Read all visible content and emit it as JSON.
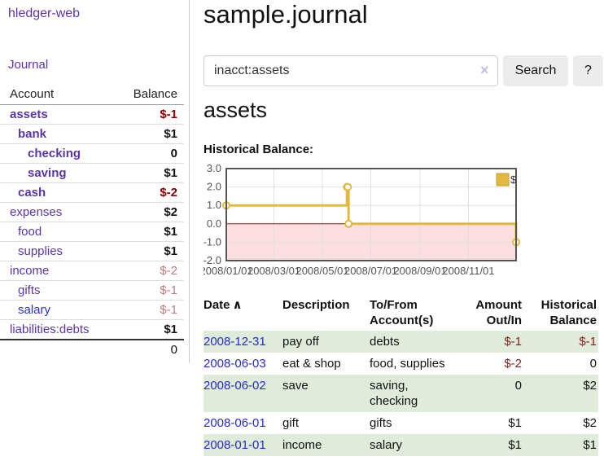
{
  "sidebar": {
    "app_title": "hledger-web",
    "journal_link": "Journal",
    "accounts": {
      "headers": {
        "account": "Account",
        "balance": "Balance"
      },
      "rows": [
        {
          "name": "assets",
          "balance": "$-1"
        },
        {
          "name": "bank",
          "balance": "$1"
        },
        {
          "name": "checking",
          "balance": "0"
        },
        {
          "name": "saving",
          "balance": "$1"
        },
        {
          "name": "cash",
          "balance": "$-2"
        },
        {
          "name": "expenses",
          "balance": "$2"
        },
        {
          "name": "food",
          "balance": "$1"
        },
        {
          "name": "supplies",
          "balance": "$1"
        },
        {
          "name": "income",
          "balance": "$-2"
        },
        {
          "name": "gifts",
          "balance": "$-1"
        },
        {
          "name": "salary",
          "balance": "$-1"
        },
        {
          "name": "liabilities:debts",
          "balance": "$1"
        }
      ],
      "total": "0"
    }
  },
  "main": {
    "title": "sample.journal",
    "search": {
      "value": "inacct:assets",
      "clear_icon": "×",
      "button_label": "Search",
      "help_label": "?"
    },
    "account_heading": "assets",
    "chart_label": "Historical Balance:"
  },
  "chart_data": {
    "type": "line",
    "title": "Historical Balance:",
    "x_range": [
      "2008/01/01",
      "2008/12/31"
    ],
    "x_ticks": [
      "2008/01/01",
      "2008/03/01",
      "2008/05/01",
      "2008/07/01",
      "2008/09/01",
      "2008/11/01"
    ],
    "y_ticks": [
      3.0,
      2.0,
      1.0,
      0.0,
      -1.0,
      -2.0
    ],
    "ylim": [
      -2,
      3
    ],
    "grid": true,
    "legend_position": "top-right",
    "series": [
      {
        "name": "$",
        "step": true,
        "points": [
          {
            "date": "2008-01-01",
            "value": 1
          },
          {
            "date": "2008-06-01",
            "value": 2
          },
          {
            "date": "2008-06-02",
            "value": 2
          },
          {
            "date": "2008-06-03",
            "value": 0
          },
          {
            "date": "2008-12-31",
            "value": -1
          }
        ]
      }
    ],
    "colors": {
      "line": "#e3b83e",
      "line_border": "#c59f2f",
      "negative_fill": "#fcdede",
      "zero_line": "#8b1414",
      "grid": "#e0e0e0",
      "border": "#555555",
      "tick_text": "#545454"
    }
  },
  "transactions": {
    "headers": {
      "date": "Date",
      "sort_icon": "∧",
      "description": "Description",
      "accounts": "To/From Account(s)",
      "amount": "Amount Out/In",
      "balance": "Historical Balance"
    },
    "rows": [
      {
        "date": "2008-12-31",
        "description": "pay off",
        "accounts": "debts",
        "amount": "$-1",
        "balance": "$-1"
      },
      {
        "date": "2008-06-03",
        "description": "eat & shop",
        "accounts": "food, supplies",
        "amount": "$-2",
        "balance": "0"
      },
      {
        "date": "2008-06-02",
        "description": "save",
        "accounts": "saving, checking",
        "amount": "0",
        "balance": "$2"
      },
      {
        "date": "2008-06-01",
        "description": "gift",
        "accounts": "gifts",
        "amount": "$1",
        "balance": "$2"
      },
      {
        "date": "2008-01-01",
        "description": "income",
        "accounts": "salary",
        "amount": "$1",
        "balance": "$1"
      }
    ]
  },
  "colors": {
    "link_purple": "#5b34ad",
    "link_blue": "#2629d6",
    "negative_strong": "#8b0000",
    "negative_soft": "#b97b7b",
    "row_stripe_green": "#deecd9"
  }
}
